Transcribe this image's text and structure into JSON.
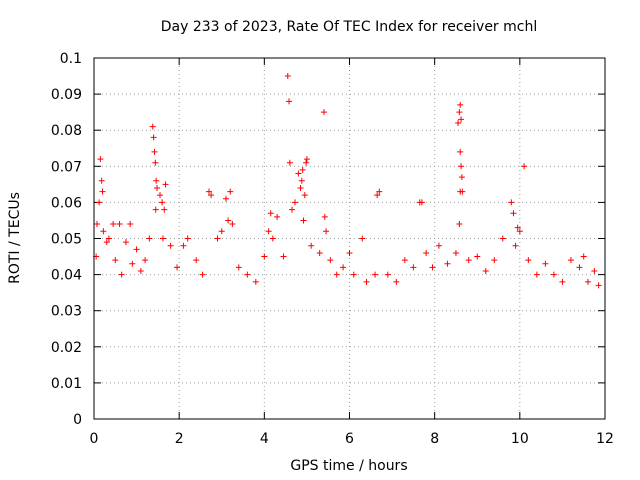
{
  "chart_data": {
    "type": "scatter",
    "title": "Day 233 of 2023, Rate Of TEC Index for receiver mchl",
    "xlabel": "GPS time / hours",
    "ylabel": "ROTI / TECUs",
    "xlim": [
      0,
      12
    ],
    "ylim": [
      0,
      0.1
    ],
    "xticks": [
      "0",
      "2",
      "4",
      "6",
      "8",
      "10",
      "12"
    ],
    "yticks": [
      "0",
      "0.01",
      "0.02",
      "0.03",
      "0.04",
      "0.05",
      "0.06",
      "0.07",
      "0.08",
      "0.09",
      "0.1"
    ],
    "grid": true,
    "marker": "+",
    "color": "#ff0000",
    "series": [
      {
        "points": [
          [
            0.05,
            0.045
          ],
          [
            0.07,
            0.054
          ],
          [
            0.12,
            0.06
          ],
          [
            0.15,
            0.072
          ],
          [
            0.18,
            0.066
          ],
          [
            0.2,
            0.063
          ],
          [
            0.22,
            0.052
          ],
          [
            0.3,
            0.049
          ],
          [
            0.35,
            0.05
          ],
          [
            0.45,
            0.054
          ],
          [
            0.5,
            0.044
          ],
          [
            0.6,
            0.054
          ],
          [
            0.65,
            0.04
          ],
          [
            0.75,
            0.049
          ],
          [
            0.85,
            0.054
          ],
          [
            0.9,
            0.043
          ],
          [
            1.0,
            0.047
          ],
          [
            1.1,
            0.041
          ],
          [
            1.2,
            0.044
          ],
          [
            1.3,
            0.05
          ],
          [
            1.38,
            0.081
          ],
          [
            1.4,
            0.078
          ],
          [
            1.42,
            0.074
          ],
          [
            1.44,
            0.071
          ],
          [
            1.46,
            0.066
          ],
          [
            1.48,
            0.064
          ],
          [
            1.45,
            0.058
          ],
          [
            1.55,
            0.062
          ],
          [
            1.6,
            0.06
          ],
          [
            1.65,
            0.058
          ],
          [
            1.68,
            0.065
          ],
          [
            1.62,
            0.05
          ],
          [
            1.8,
            0.048
          ],
          [
            1.95,
            0.042
          ],
          [
            2.1,
            0.048
          ],
          [
            2.2,
            0.05
          ],
          [
            2.4,
            0.044
          ],
          [
            2.55,
            0.04
          ],
          [
            2.7,
            0.063
          ],
          [
            2.75,
            0.062
          ],
          [
            2.9,
            0.05
          ],
          [
            3.0,
            0.052
          ],
          [
            3.1,
            0.061
          ],
          [
            3.2,
            0.063
          ],
          [
            3.15,
            0.055
          ],
          [
            3.25,
            0.054
          ],
          [
            3.4,
            0.042
          ],
          [
            3.6,
            0.04
          ],
          [
            3.8,
            0.038
          ],
          [
            4.0,
            0.045
          ],
          [
            4.1,
            0.052
          ],
          [
            4.15,
            0.057
          ],
          [
            4.2,
            0.05
          ],
          [
            4.3,
            0.056
          ],
          [
            4.45,
            0.045
          ],
          [
            4.55,
            0.095
          ],
          [
            4.58,
            0.088
          ],
          [
            4.6,
            0.071
          ],
          [
            4.65,
            0.058
          ],
          [
            4.72,
            0.06
          ],
          [
            4.8,
            0.068
          ],
          [
            4.85,
            0.064
          ],
          [
            4.88,
            0.066
          ],
          [
            4.9,
            0.069
          ],
          [
            4.95,
            0.062
          ],
          [
            4.98,
            0.071
          ],
          [
            5.0,
            0.072
          ],
          [
            4.92,
            0.055
          ],
          [
            5.1,
            0.048
          ],
          [
            5.3,
            0.046
          ],
          [
            5.4,
            0.085
          ],
          [
            5.42,
            0.056
          ],
          [
            5.45,
            0.052
          ],
          [
            5.55,
            0.044
          ],
          [
            5.7,
            0.04
          ],
          [
            5.85,
            0.042
          ],
          [
            6.0,
            0.046
          ],
          [
            6.1,
            0.04
          ],
          [
            6.3,
            0.05
          ],
          [
            6.4,
            0.038
          ],
          [
            6.6,
            0.04
          ],
          [
            6.65,
            0.062
          ],
          [
            6.7,
            0.063
          ],
          [
            6.9,
            0.04
          ],
          [
            7.1,
            0.038
          ],
          [
            7.3,
            0.044
          ],
          [
            7.5,
            0.042
          ],
          [
            7.65,
            0.06
          ],
          [
            7.7,
            0.06
          ],
          [
            7.8,
            0.046
          ],
          [
            7.95,
            0.042
          ],
          [
            8.1,
            0.048
          ],
          [
            8.3,
            0.043
          ],
          [
            8.5,
            0.046
          ],
          [
            8.55,
            0.082
          ],
          [
            8.58,
            0.085
          ],
          [
            8.6,
            0.087
          ],
          [
            8.62,
            0.083
          ],
          [
            8.6,
            0.074
          ],
          [
            8.62,
            0.07
          ],
          [
            8.64,
            0.067
          ],
          [
            8.6,
            0.063
          ],
          [
            8.65,
            0.063
          ],
          [
            8.58,
            0.054
          ],
          [
            8.8,
            0.044
          ],
          [
            9.0,
            0.045
          ],
          [
            9.2,
            0.041
          ],
          [
            9.4,
            0.044
          ],
          [
            9.6,
            0.05
          ],
          [
            9.8,
            0.06
          ],
          [
            9.85,
            0.057
          ],
          [
            9.9,
            0.048
          ],
          [
            9.95,
            0.053
          ],
          [
            10.0,
            0.052
          ],
          [
            10.1,
            0.07
          ],
          [
            10.2,
            0.044
          ],
          [
            10.4,
            0.04
          ],
          [
            10.6,
            0.043
          ],
          [
            10.8,
            0.04
          ],
          [
            11.0,
            0.038
          ],
          [
            11.2,
            0.044
          ],
          [
            11.4,
            0.042
          ],
          [
            11.5,
            0.045
          ],
          [
            11.6,
            0.038
          ],
          [
            11.75,
            0.041
          ],
          [
            11.85,
            0.037
          ]
        ]
      }
    ]
  }
}
